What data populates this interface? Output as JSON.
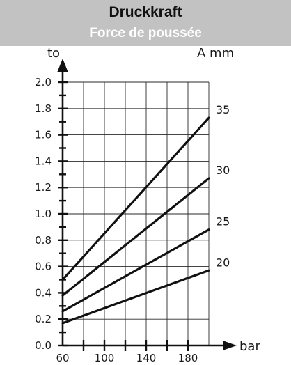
{
  "header": {
    "title": "Druckkraft",
    "subtitle": "Force de poussée"
  },
  "chart_data": {
    "type": "line",
    "ylabel": "to",
    "xlabel": "bar",
    "series_unit_label": "A  mm",
    "x_ticks": [
      "60",
      "100",
      "140",
      "180"
    ],
    "y_ticks": [
      "0.0",
      "0.2",
      "0.4",
      "0.6",
      "0.8",
      "1.0",
      "1.2",
      "1.4",
      "1.6",
      "1.8",
      "2.0"
    ],
    "xlim": [
      60,
      200
    ],
    "ylim": [
      0,
      2.0
    ],
    "grid": true,
    "series": [
      {
        "name": "35",
        "x": [
          60,
          200
        ],
        "y": [
          0.5,
          1.73
        ]
      },
      {
        "name": "30",
        "x": [
          60,
          200
        ],
        "y": [
          0.38,
          1.27
        ]
      },
      {
        "name": "25",
        "x": [
          60,
          200
        ],
        "y": [
          0.26,
          0.88
        ]
      },
      {
        "name": "20",
        "x": [
          60,
          200
        ],
        "y": [
          0.17,
          0.57
        ]
      }
    ]
  }
}
